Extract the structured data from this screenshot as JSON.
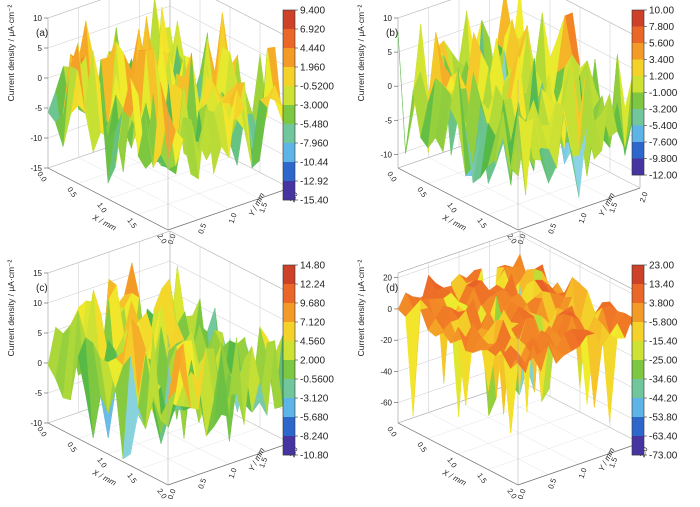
{
  "chart_data": [
    {
      "type": "surface",
      "panel_label": "(a)",
      "zlabel": "Current density / μA·cm⁻²",
      "xlabel": "X / mm",
      "ylabel": "Y / mm",
      "x_ticks": [
        "0.0",
        "0.5",
        "1.0",
        "1.5",
        "2.0"
      ],
      "y_ticks": [
        "0.0",
        "0.5",
        "1.0",
        "1.5",
        "2.0"
      ],
      "z_ticks": [
        "-15",
        "-10",
        "-5",
        "0",
        "5",
        "10"
      ],
      "zlim": [
        -15,
        10
      ],
      "colorbar_range": [
        -15.4,
        9.4
      ],
      "colorbar_labels": [
        "9.400",
        "6.920",
        "4.440",
        "1.960",
        "-0.5200",
        "-3.000",
        "-5.480",
        "-7.960",
        "-10.44",
        "-12.92",
        "-15.40"
      ],
      "typical_z": -2,
      "z_min": -13,
      "z_max": 10
    },
    {
      "type": "surface",
      "panel_label": "(b)",
      "zlabel": "Current density / μA·cm⁻²",
      "xlabel": "X / mm",
      "ylabel": "Y / mm",
      "x_ticks": [
        "0.0",
        "0.5",
        "1.0",
        "1.5",
        "2.0"
      ],
      "y_ticks": [
        "0.0",
        "0.5",
        "1.0",
        "1.5",
        "2.0"
      ],
      "z_ticks": [
        "-10",
        "-5",
        "0",
        "5",
        "10"
      ],
      "zlim": [
        -12,
        10
      ],
      "colorbar_range": [
        -12,
        10
      ],
      "colorbar_labels": [
        "10.00",
        "7.800",
        "5.600",
        "3.400",
        "1.200",
        "-1.000",
        "-3.200",
        "-5.400",
        "-7.600",
        "-9.800",
        "-12.00"
      ],
      "typical_z": -1,
      "z_min": -11,
      "z_max": 9
    },
    {
      "type": "surface",
      "panel_label": "(c)",
      "zlabel": "Current density / μA·cm⁻²",
      "xlabel": "X / mm",
      "ylabel": "Y / mm",
      "x_ticks": [
        "0.0",
        "0.5",
        "1.0",
        "1.5",
        "2.0"
      ],
      "y_ticks": [
        "0.0",
        "0.5",
        "1.0",
        "1.5",
        "2.0"
      ],
      "z_ticks": [
        "-10",
        "-5",
        "0",
        "5",
        "10",
        "15"
      ],
      "zlim": [
        -10,
        15
      ],
      "colorbar_range": [
        -10.8,
        14.8
      ],
      "colorbar_labels": [
        "14.80",
        "12.24",
        "9.680",
        "7.120",
        "4.560",
        "2.000",
        "-0.5600",
        "-3.120",
        "-5.680",
        "-8.240",
        "-10.80"
      ],
      "typical_z": 2,
      "z_min": -10,
      "z_max": 13
    },
    {
      "type": "surface",
      "panel_label": "(d)",
      "zlabel": "Current density / μA·cm⁻²",
      "xlabel": "X / mm",
      "ylabel": "Y / mm",
      "x_ticks": [
        "0.0",
        "0.5",
        "1.0",
        "1.5",
        "2.0"
      ],
      "y_ticks": [
        "0.0",
        "0.5",
        "1.0",
        "1.5",
        "2.0"
      ],
      "z_ticks": [
        "-60",
        "-40",
        "-20",
        "0",
        "20"
      ],
      "zlim": [
        -73,
        23
      ],
      "colorbar_range": [
        -73,
        23
      ],
      "colorbar_labels": [
        "23.00",
        "13.40",
        "3.800",
        "-5.800",
        "-15.40",
        "-25.00",
        "-34.60",
        "-44.20",
        "-53.80",
        "-63.40",
        "-73.00"
      ],
      "typical_z": 2,
      "z_min": -70,
      "z_max": 15
    }
  ],
  "colormap": [
    "#5e2a8c",
    "#2f3fb5",
    "#2c8fe0",
    "#8fd6ee",
    "#52b848",
    "#a8d63a",
    "#f1ed2c",
    "#f6b728",
    "#f17e26",
    "#e5502a",
    "#b23124"
  ]
}
